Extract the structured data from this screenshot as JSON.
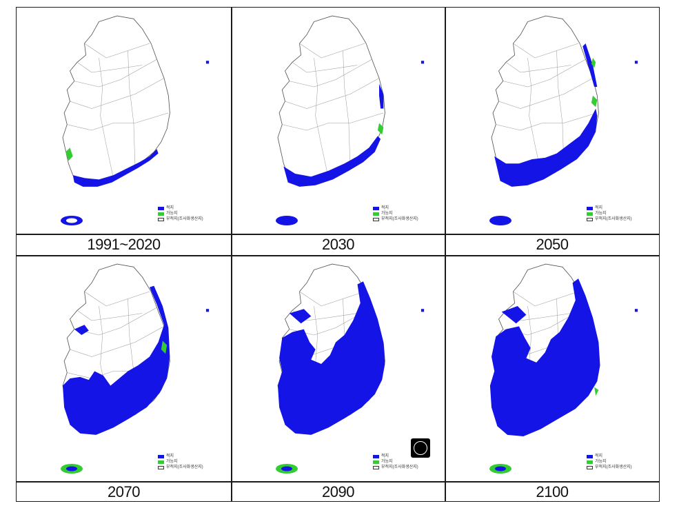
{
  "panels": [
    {
      "year": "1991~2020",
      "level": 0
    },
    {
      "year": "2030",
      "level": 1
    },
    {
      "year": "2050",
      "level": 2
    },
    {
      "year": "2070",
      "level": 3
    },
    {
      "year": "2090",
      "level": 4
    },
    {
      "year": "2100",
      "level": 5
    }
  ],
  "legend": {
    "items": [
      {
        "label": "적지",
        "color": "#1414e6"
      },
      {
        "label": "가능지",
        "color": "#33cc33"
      },
      {
        "label": "부적지(조사화생산지)",
        "color": "#ffffff"
      }
    ]
  },
  "colors": {
    "suitable": "#1414e6",
    "possible": "#33cc33",
    "boundary": "#555555"
  }
}
